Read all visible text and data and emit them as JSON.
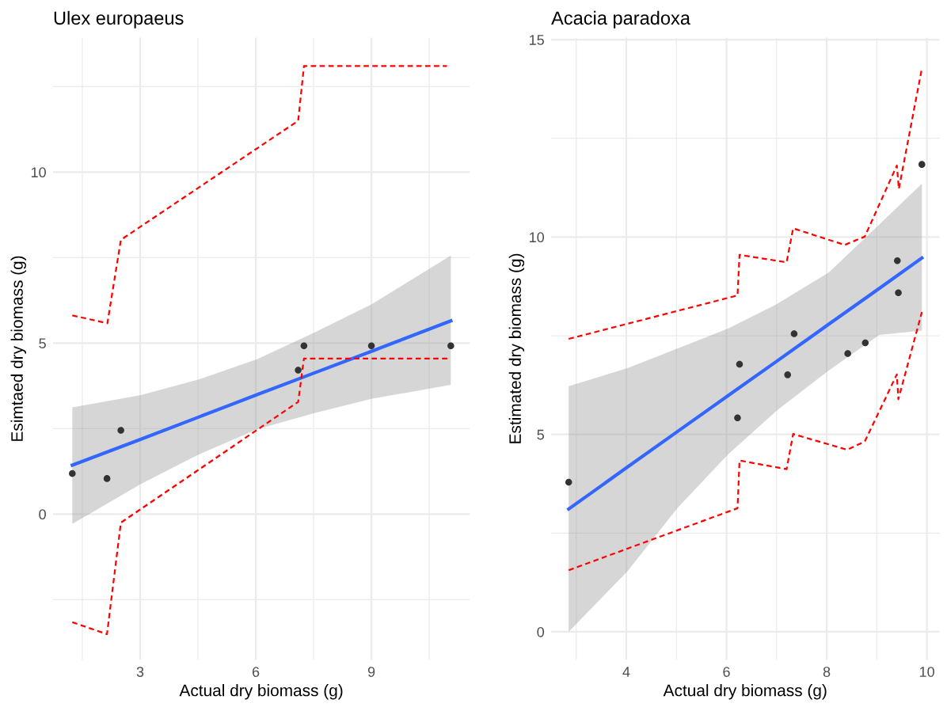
{
  "chart_data": [
    {
      "type": "scatter",
      "title": "Ulex europaeus",
      "xlabel": "Actual dry biomass (g)",
      "ylabel": "Esimtaed dry biomass (g)",
      "xlim": [
        0.74,
        11.55
      ],
      "ylim": [
        -4.26,
        13.93
      ],
      "xticks": [
        {
          "value": 1.5,
          "label": null
        },
        3,
        {
          "value": 4.5,
          "label": null
        },
        6,
        {
          "value": 7.5,
          "label": null
        },
        9,
        {
          "value": 10.5,
          "label": null
        }
      ],
      "yticks": [
        {
          "value": -2.5,
          "label": null
        },
        0,
        {
          "value": 2.5,
          "label": null
        },
        5,
        {
          "value": 7.5,
          "label": null
        },
        10,
        {
          "value": 12.5,
          "label": null
        }
      ],
      "grid": true,
      "series": [
        {
          "color": "#333333",
          "marker": "circle",
          "x": [
            1.24,
            2.14,
            2.5,
            7.1,
            7.25,
            9.0,
            11.06
          ],
          "values": [
            1.19,
            1.04,
            2.45,
            4.21,
            4.92,
            4.92,
            4.92
          ]
        },
        {
          "type": "line",
          "color": "#3366ff",
          "line_style": "solid",
          "x": [
            1.24,
            3.02,
            4.5,
            6.03,
            7.5,
            9.0,
            11.06
          ],
          "values": [
            1.43,
            2.19,
            2.83,
            3.49,
            4.12,
            4.76,
            5.65
          ],
          "lower": [
            -0.29,
            0.88,
            1.73,
            2.48,
            2.95,
            3.37,
            3.78
          ],
          "upper": [
            3.12,
            3.48,
            3.93,
            4.53,
            5.3,
            6.13,
            7.56
          ]
        },
        {
          "type": "line",
          "color": "#ff0000",
          "line_style": "dashed",
          "x": [
            1.24,
            2.15,
            2.5,
            7.1,
            7.25,
            10.96
          ],
          "values": [
            5.81,
            5.58,
            8.02,
            11.5,
            13.1,
            13.1
          ]
        },
        {
          "type": "line",
          "color": "#ff0000",
          "line_style": "dashed",
          "x": [
            1.24,
            2.14,
            2.5,
            7.1,
            7.25,
            11.06
          ],
          "values": [
            -3.16,
            -3.51,
            -0.25,
            3.28,
            4.55,
            4.55
          ]
        }
      ]
    },
    {
      "type": "scatter",
      "title": "Acacia paradoxa",
      "xlabel": "Actual dry biomass (g)",
      "ylabel": "Estimated dry biomass (g)",
      "xlim": [
        2.5,
        10.25
      ],
      "ylim": [
        -0.71,
        15.05
      ],
      "xticks": [
        {
          "value": 3,
          "label": null
        },
        4,
        {
          "value": 5,
          "label": null
        },
        6,
        {
          "value": 7,
          "label": null
        },
        8,
        {
          "value": 9,
          "label": null
        },
        10
      ],
      "yticks": [
        0,
        {
          "value": 2.5,
          "label": null
        },
        5,
        {
          "value": 7.5,
          "label": null
        },
        10,
        {
          "value": 12.5,
          "label": null
        },
        15
      ],
      "grid": true,
      "series": [
        {
          "color": "#333333",
          "marker": "circle",
          "x": [
            2.85,
            6.22,
            6.26,
            7.22,
            7.35,
            8.42,
            8.77,
            9.41,
            9.43,
            9.9
          ],
          "values": [
            3.79,
            5.42,
            6.78,
            6.51,
            7.55,
            7.05,
            7.32,
            9.4,
            8.59,
            11.84
          ]
        },
        {
          "type": "line",
          "color": "#3366ff",
          "line_style": "solid",
          "x": [
            2.85,
            4.02,
            5.03,
            6.03,
            7.0,
            8.04,
            9.05,
            9.9
          ],
          "values": [
            3.11,
            4.17,
            5.08,
            5.98,
            6.85,
            7.79,
            8.7,
            9.47
          ],
          "lower": [
            0.0,
            1.53,
            3.15,
            4.49,
            5.6,
            6.62,
            7.52,
            7.63
          ],
          "upper": [
            6.22,
            6.68,
            7.18,
            7.68,
            8.3,
            9.1,
            10.32,
            11.35
          ]
        },
        {
          "type": "line",
          "color": "#ff0000",
          "line_style": "dashed",
          "x": [
            2.85,
            6.22,
            6.26,
            7.2,
            7.33,
            8.36,
            8.76,
            9.4,
            9.44,
            9.9
          ],
          "values": [
            7.42,
            8.52,
            9.55,
            9.36,
            10.22,
            9.8,
            10.01,
            11.81,
            11.22,
            14.27
          ]
        },
        {
          "type": "line",
          "color": "#ff0000",
          "line_style": "dashed",
          "x": [
            2.85,
            6.22,
            6.26,
            7.2,
            7.33,
            8.41,
            8.76,
            9.4,
            9.43,
            9.9
          ],
          "values": [
            1.56,
            3.13,
            4.34,
            4.12,
            5.01,
            4.61,
            4.82,
            6.52,
            5.89,
            8.1
          ]
        }
      ]
    }
  ]
}
